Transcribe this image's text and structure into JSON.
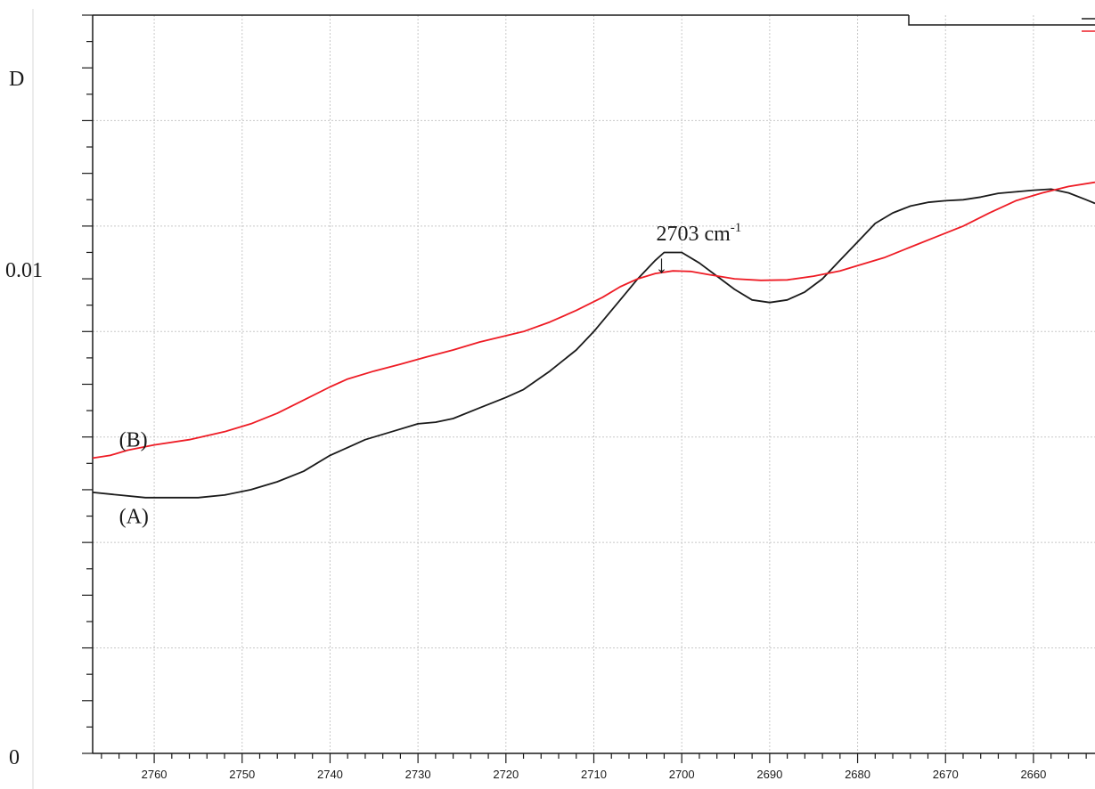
{
  "chart_data": {
    "type": "line",
    "title": "",
    "xlabel": "",
    "ylabel": "",
    "ylabel_top": "D",
    "xlim": [
      2767,
      2653
    ],
    "x_reversed": true,
    "ylim": [
      0,
      0.014
    ],
    "grid": true,
    "x_ticks": [
      2760,
      2750,
      2740,
      2730,
      2720,
      2710,
      2700,
      2690,
      2680,
      2670,
      2660
    ],
    "x_tick_labels": [
      "2760",
      "2750",
      "2740",
      "2730",
      "2720",
      "2710",
      "2700",
      "2690",
      "2680",
      "2670",
      "2660"
    ],
    "y_tick_labels": [
      {
        "value": 0,
        "label": "0"
      },
      {
        "value": 0.01,
        "label": "0.01"
      }
    ],
    "annotation": {
      "text": "2703 cm",
      "superscript": "-1",
      "arrow": "↓",
      "x": 2702
    },
    "series": [
      {
        "name": "(A)",
        "color": "#1a1a1a",
        "points": [
          [
            2767,
            0.00495
          ],
          [
            2764,
            0.0049
          ],
          [
            2761,
            0.00485
          ],
          [
            2758,
            0.00485
          ],
          [
            2755,
            0.00485
          ],
          [
            2752,
            0.0049
          ],
          [
            2749,
            0.005
          ],
          [
            2746,
            0.00515
          ],
          [
            2743,
            0.00535
          ],
          [
            2740,
            0.00565
          ],
          [
            2738,
            0.0058
          ],
          [
            2736,
            0.00595
          ],
          [
            2733,
            0.0061
          ],
          [
            2730,
            0.00625
          ],
          [
            2728,
            0.00628
          ],
          [
            2726,
            0.00635
          ],
          [
            2723,
            0.00655
          ],
          [
            2720,
            0.00675
          ],
          [
            2718,
            0.0069
          ],
          [
            2715,
            0.00725
          ],
          [
            2712,
            0.00765
          ],
          [
            2710,
            0.008
          ],
          [
            2707,
            0.0086
          ],
          [
            2705,
            0.009
          ],
          [
            2703,
            0.00935
          ],
          [
            2702,
            0.0095
          ],
          [
            2700,
            0.0095
          ],
          [
            2698,
            0.0093
          ],
          [
            2696,
            0.00905
          ],
          [
            2694,
            0.0088
          ],
          [
            2692,
            0.0086
          ],
          [
            2690,
            0.00855
          ],
          [
            2688,
            0.0086
          ],
          [
            2686,
            0.00875
          ],
          [
            2684,
            0.009
          ],
          [
            2682,
            0.00935
          ],
          [
            2680,
            0.0097
          ],
          [
            2678,
            0.01005
          ],
          [
            2676,
            0.01025
          ],
          [
            2674,
            0.01038
          ],
          [
            2672,
            0.01045
          ],
          [
            2670,
            0.01048
          ],
          [
            2668,
            0.0105
          ],
          [
            2666,
            0.01055
          ],
          [
            2664,
            0.01062
          ],
          [
            2662,
            0.01065
          ],
          [
            2660,
            0.01068
          ],
          [
            2658,
            0.0107
          ],
          [
            2656,
            0.01063
          ],
          [
            2654,
            0.0105
          ],
          [
            2653,
            0.01043
          ]
        ]
      },
      {
        "name": "(B)",
        "color": "#ee1c25",
        "points": [
          [
            2767,
            0.0056
          ],
          [
            2765,
            0.00565
          ],
          [
            2763,
            0.00575
          ],
          [
            2760,
            0.00585
          ],
          [
            2756,
            0.00595
          ],
          [
            2752,
            0.0061
          ],
          [
            2749,
            0.00625
          ],
          [
            2746,
            0.00645
          ],
          [
            2743,
            0.0067
          ],
          [
            2740,
            0.00695
          ],
          [
            2738,
            0.0071
          ],
          [
            2735,
            0.00725
          ],
          [
            2732,
            0.00738
          ],
          [
            2729,
            0.00752
          ],
          [
            2726,
            0.00765
          ],
          [
            2723,
            0.0078
          ],
          [
            2720,
            0.00792
          ],
          [
            2718,
            0.008
          ],
          [
            2715,
            0.00818
          ],
          [
            2712,
            0.0084
          ],
          [
            2709,
            0.00865
          ],
          [
            2707,
            0.00885
          ],
          [
            2705,
            0.009
          ],
          [
            2703,
            0.0091
          ],
          [
            2701,
            0.00915
          ],
          [
            2699,
            0.00914
          ],
          [
            2697,
            0.00908
          ],
          [
            2694,
            0.009
          ],
          [
            2691,
            0.00897
          ],
          [
            2688,
            0.00898
          ],
          [
            2685,
            0.00905
          ],
          [
            2682,
            0.00915
          ],
          [
            2680,
            0.00925
          ],
          [
            2677,
            0.0094
          ],
          [
            2674,
            0.0096
          ],
          [
            2671,
            0.0098
          ],
          [
            2668,
            0.01
          ],
          [
            2665,
            0.01025
          ],
          [
            2662,
            0.01048
          ],
          [
            2659,
            0.01063
          ],
          [
            2656,
            0.01075
          ],
          [
            2653,
            0.01083
          ]
        ]
      }
    ],
    "series_labels": [
      {
        "series": 0,
        "x": 2764,
        "y": 0.0045
      },
      {
        "series": 1,
        "x": 2764,
        "y": 0.00595
      }
    ]
  }
}
